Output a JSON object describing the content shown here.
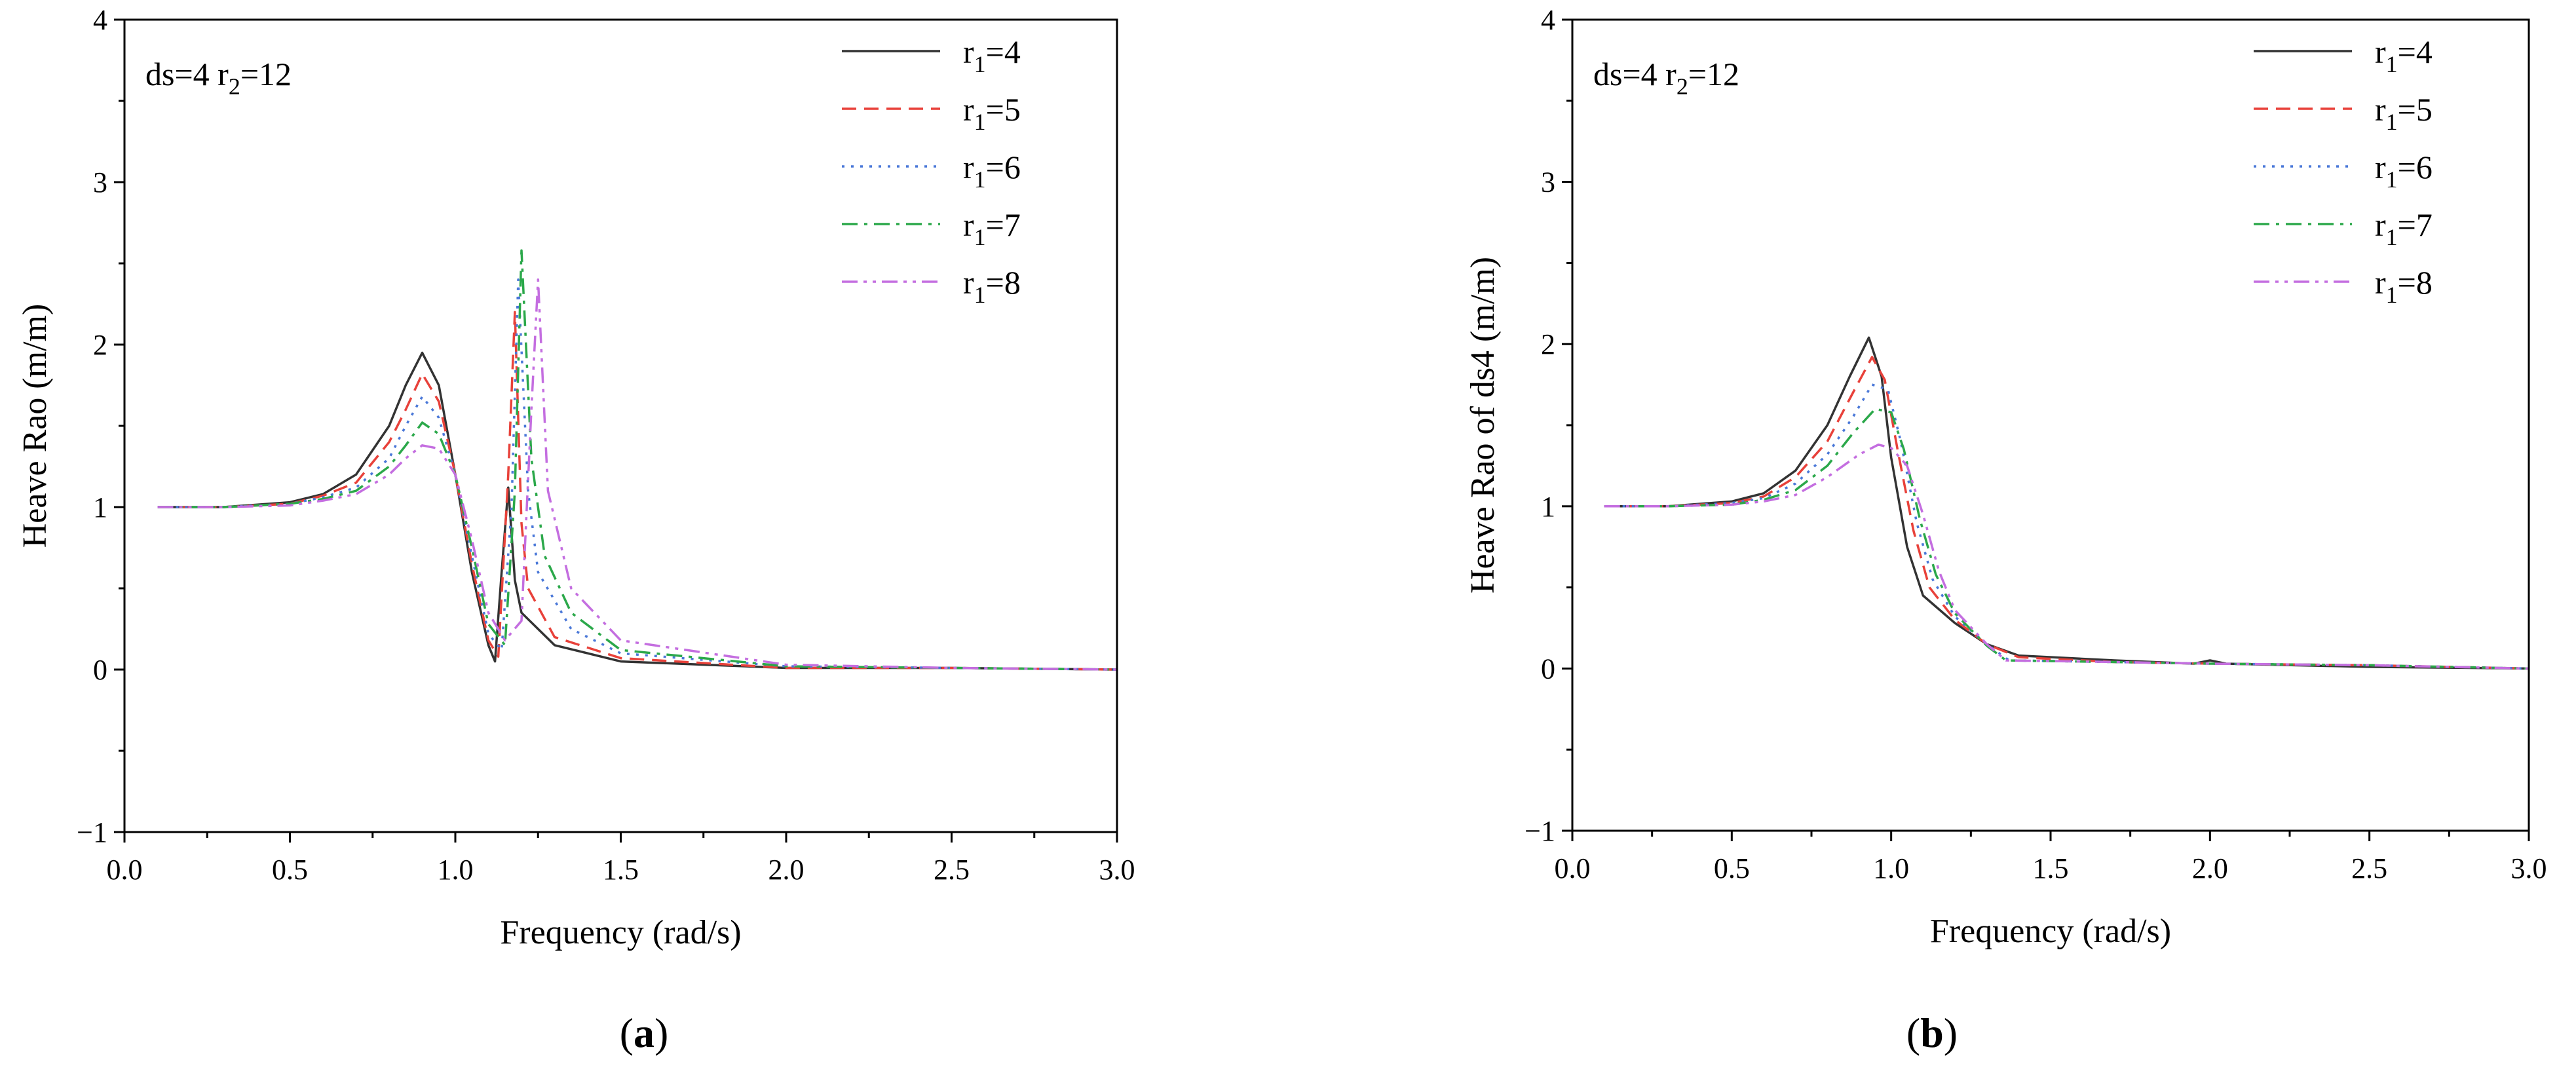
{
  "colors": {
    "r1_4": "#333333",
    "r1_5": "#e8413a",
    "r1_6": "#4a78d8",
    "r1_7": "#2ba84a",
    "r1_8": "#c46ee0"
  },
  "panels": [
    {
      "caption_letter": "a",
      "annotation": "ds=4  r",
      "annotation_sub": "2",
      "annotation_tail": "=12",
      "ylabel": "Heave Rao (m/m)",
      "xlabel": "Frequency (rad/s)"
    },
    {
      "caption_letter": "b",
      "annotation": "ds=4  r",
      "annotation_sub": "2",
      "annotation_tail": "=12",
      "ylabel": "Heave Rao of ds4 (m/m)",
      "xlabel": "Frequency (rad/s)"
    }
  ],
  "chart_data": [
    {
      "type": "line",
      "title": "",
      "xlabel": "Frequency (rad/s)",
      "ylabel": "Heave Rao (m/m)",
      "xlim": [
        0.0,
        3.0
      ],
      "ylim": [
        -1,
        4
      ],
      "xticks": [
        "0.0",
        "0.5",
        "1.0",
        "1.5",
        "2.0",
        "2.5",
        "3.0"
      ],
      "yticks": [
        "−1",
        "0",
        "1",
        "2",
        "3",
        "4"
      ],
      "legend_position": "top-right",
      "series": [
        {
          "name": "r1=4",
          "legend_base": "r",
          "legend_sub": "1",
          "legend_tail": "=4",
          "dash": "solid",
          "x": [
            0.1,
            0.3,
            0.5,
            0.6,
            0.7,
            0.8,
            0.85,
            0.9,
            0.95,
            1.0,
            1.05,
            1.1,
            1.12,
            1.14,
            1.16,
            1.18,
            1.2,
            1.3,
            1.5,
            2.0,
            2.5,
            3.0
          ],
          "y": [
            1.0,
            1.0,
            1.03,
            1.08,
            1.2,
            1.5,
            1.75,
            1.95,
            1.75,
            1.2,
            0.6,
            0.15,
            0.05,
            0.6,
            1.12,
            0.55,
            0.35,
            0.15,
            0.05,
            0.01,
            0.01,
            0.0
          ]
        },
        {
          "name": "r1=5",
          "legend_base": "r",
          "legend_sub": "1",
          "legend_tail": "=5",
          "dash": "dashed",
          "x": [
            0.1,
            0.3,
            0.5,
            0.6,
            0.7,
            0.8,
            0.85,
            0.9,
            0.95,
            1.0,
            1.05,
            1.1,
            1.13,
            1.16,
            1.18,
            1.2,
            1.22,
            1.3,
            1.5,
            2.0,
            2.5,
            3.0
          ],
          "y": [
            1.0,
            1.0,
            1.02,
            1.07,
            1.15,
            1.4,
            1.6,
            1.82,
            1.65,
            1.2,
            0.65,
            0.18,
            0.08,
            1.2,
            2.2,
            0.9,
            0.5,
            0.2,
            0.07,
            0.01,
            0.01,
            0.0
          ]
        },
        {
          "name": "r1=6",
          "legend_base": "r",
          "legend_sub": "1",
          "legend_tail": "=6",
          "dash": "dotted",
          "x": [
            0.1,
            0.3,
            0.5,
            0.6,
            0.7,
            0.8,
            0.85,
            0.9,
            0.95,
            1.0,
            1.05,
            1.1,
            1.14,
            1.17,
            1.19,
            1.22,
            1.25,
            1.35,
            1.5,
            2.0,
            2.5,
            3.0
          ],
          "y": [
            1.0,
            1.0,
            1.02,
            1.06,
            1.12,
            1.3,
            1.5,
            1.68,
            1.55,
            1.2,
            0.7,
            0.22,
            0.12,
            1.0,
            2.4,
            1.1,
            0.6,
            0.25,
            0.1,
            0.02,
            0.01,
            0.0
          ]
        },
        {
          "name": "r1=7",
          "legend_base": "r",
          "legend_sub": "1",
          "legend_tail": "=7",
          "dash": "dashdot",
          "x": [
            0.1,
            0.3,
            0.5,
            0.6,
            0.7,
            0.8,
            0.85,
            0.9,
            0.95,
            1.0,
            1.05,
            1.1,
            1.15,
            1.18,
            1.2,
            1.23,
            1.27,
            1.35,
            1.5,
            2.0,
            2.5,
            3.0
          ],
          "y": [
            1.0,
            1.0,
            1.02,
            1.05,
            1.1,
            1.25,
            1.38,
            1.52,
            1.45,
            1.2,
            0.75,
            0.28,
            0.15,
            1.1,
            2.58,
            1.3,
            0.7,
            0.35,
            0.12,
            0.02,
            0.01,
            0.0
          ]
        },
        {
          "name": "r1=8",
          "legend_base": "r",
          "legend_sub": "1",
          "legend_tail": "=8",
          "dash": "dashdotdot",
          "x": [
            0.1,
            0.3,
            0.5,
            0.6,
            0.7,
            0.8,
            0.85,
            0.9,
            0.95,
            1.0,
            1.05,
            1.1,
            1.15,
            1.2,
            1.23,
            1.25,
            1.28,
            1.35,
            1.5,
            2.0,
            2.5,
            3.0
          ],
          "y": [
            1.0,
            1.0,
            1.01,
            1.04,
            1.08,
            1.2,
            1.3,
            1.38,
            1.36,
            1.2,
            0.8,
            0.35,
            0.18,
            0.3,
            1.6,
            2.4,
            1.1,
            0.5,
            0.18,
            0.03,
            0.01,
            0.0
          ]
        }
      ]
    },
    {
      "type": "line",
      "title": "",
      "xlabel": "Frequency (rad/s)",
      "ylabel": "Heave Rao of ds4 (m/m)",
      "xlim": [
        0.0,
        3.0
      ],
      "ylim": [
        -1,
        4
      ],
      "xticks": [
        "0.0",
        "0.5",
        "1.0",
        "1.5",
        "2.0",
        "2.5",
        "3.0"
      ],
      "yticks": [
        "−1",
        "0",
        "1",
        "2",
        "3",
        "4"
      ],
      "legend_position": "top-right",
      "series": [
        {
          "name": "r1=4",
          "legend_base": "r",
          "legend_sub": "1",
          "legend_tail": "=4",
          "dash": "solid",
          "x": [
            0.1,
            0.3,
            0.5,
            0.6,
            0.7,
            0.8,
            0.87,
            0.93,
            0.97,
            1.0,
            1.05,
            1.1,
            1.2,
            1.3,
            1.4,
            1.7,
            1.95,
            2.0,
            2.05,
            2.5,
            3.0
          ],
          "y": [
            1.0,
            1.0,
            1.03,
            1.08,
            1.22,
            1.5,
            1.8,
            2.04,
            1.8,
            1.3,
            0.75,
            0.45,
            0.28,
            0.15,
            0.08,
            0.05,
            0.03,
            0.05,
            0.03,
            0.01,
            0.0
          ]
        },
        {
          "name": "r1=5",
          "legend_base": "r",
          "legend_sub": "1",
          "legend_tail": "=5",
          "dash": "dashed",
          "x": [
            0.1,
            0.3,
            0.5,
            0.6,
            0.7,
            0.8,
            0.88,
            0.94,
            0.98,
            1.02,
            1.07,
            1.12,
            1.2,
            1.3,
            1.4,
            1.7,
            2.0,
            2.5,
            3.0
          ],
          "y": [
            1.0,
            1.0,
            1.02,
            1.06,
            1.18,
            1.4,
            1.7,
            1.92,
            1.78,
            1.35,
            0.85,
            0.5,
            0.3,
            0.15,
            0.07,
            0.04,
            0.03,
            0.02,
            0.0
          ]
        },
        {
          "name": "r1=6",
          "legend_base": "r",
          "legend_sub": "1",
          "legend_tail": "=6",
          "dash": "dotted",
          "x": [
            0.1,
            0.3,
            0.5,
            0.6,
            0.7,
            0.8,
            0.88,
            0.94,
            0.99,
            1.03,
            1.08,
            1.13,
            1.2,
            1.3,
            1.37,
            1.7,
            2.0,
            2.5,
            3.0
          ],
          "y": [
            1.0,
            1.0,
            1.02,
            1.05,
            1.14,
            1.32,
            1.55,
            1.75,
            1.72,
            1.4,
            0.9,
            0.55,
            0.32,
            0.15,
            0.05,
            0.04,
            0.03,
            0.02,
            0.0
          ]
        },
        {
          "name": "r1=7",
          "legend_base": "r",
          "legend_sub": "1",
          "legend_tail": "=7",
          "dash": "dashdot",
          "x": [
            0.1,
            0.3,
            0.5,
            0.6,
            0.7,
            0.8,
            0.88,
            0.95,
            1.0,
            1.04,
            1.09,
            1.14,
            1.2,
            1.3,
            1.36,
            1.7,
            2.0,
            2.5,
            3.0
          ],
          "y": [
            1.0,
            1.0,
            1.01,
            1.04,
            1.1,
            1.25,
            1.45,
            1.6,
            1.58,
            1.35,
            0.92,
            0.58,
            0.34,
            0.14,
            0.05,
            0.04,
            0.03,
            0.02,
            0.0
          ]
        },
        {
          "name": "r1=8",
          "legend_base": "r",
          "legend_sub": "1",
          "legend_tail": "=8",
          "dash": "dashdotdot",
          "x": [
            0.1,
            0.3,
            0.5,
            0.6,
            0.7,
            0.8,
            0.9,
            0.96,
            1.0,
            1.05,
            1.1,
            1.15,
            1.2,
            1.3,
            1.36,
            1.7,
            2.0,
            2.5,
            3.0
          ],
          "y": [
            1.0,
            1.0,
            1.01,
            1.03,
            1.07,
            1.18,
            1.32,
            1.38,
            1.36,
            1.25,
            0.95,
            0.6,
            0.36,
            0.15,
            0.05,
            0.04,
            0.03,
            0.02,
            0.0
          ]
        }
      ]
    }
  ]
}
